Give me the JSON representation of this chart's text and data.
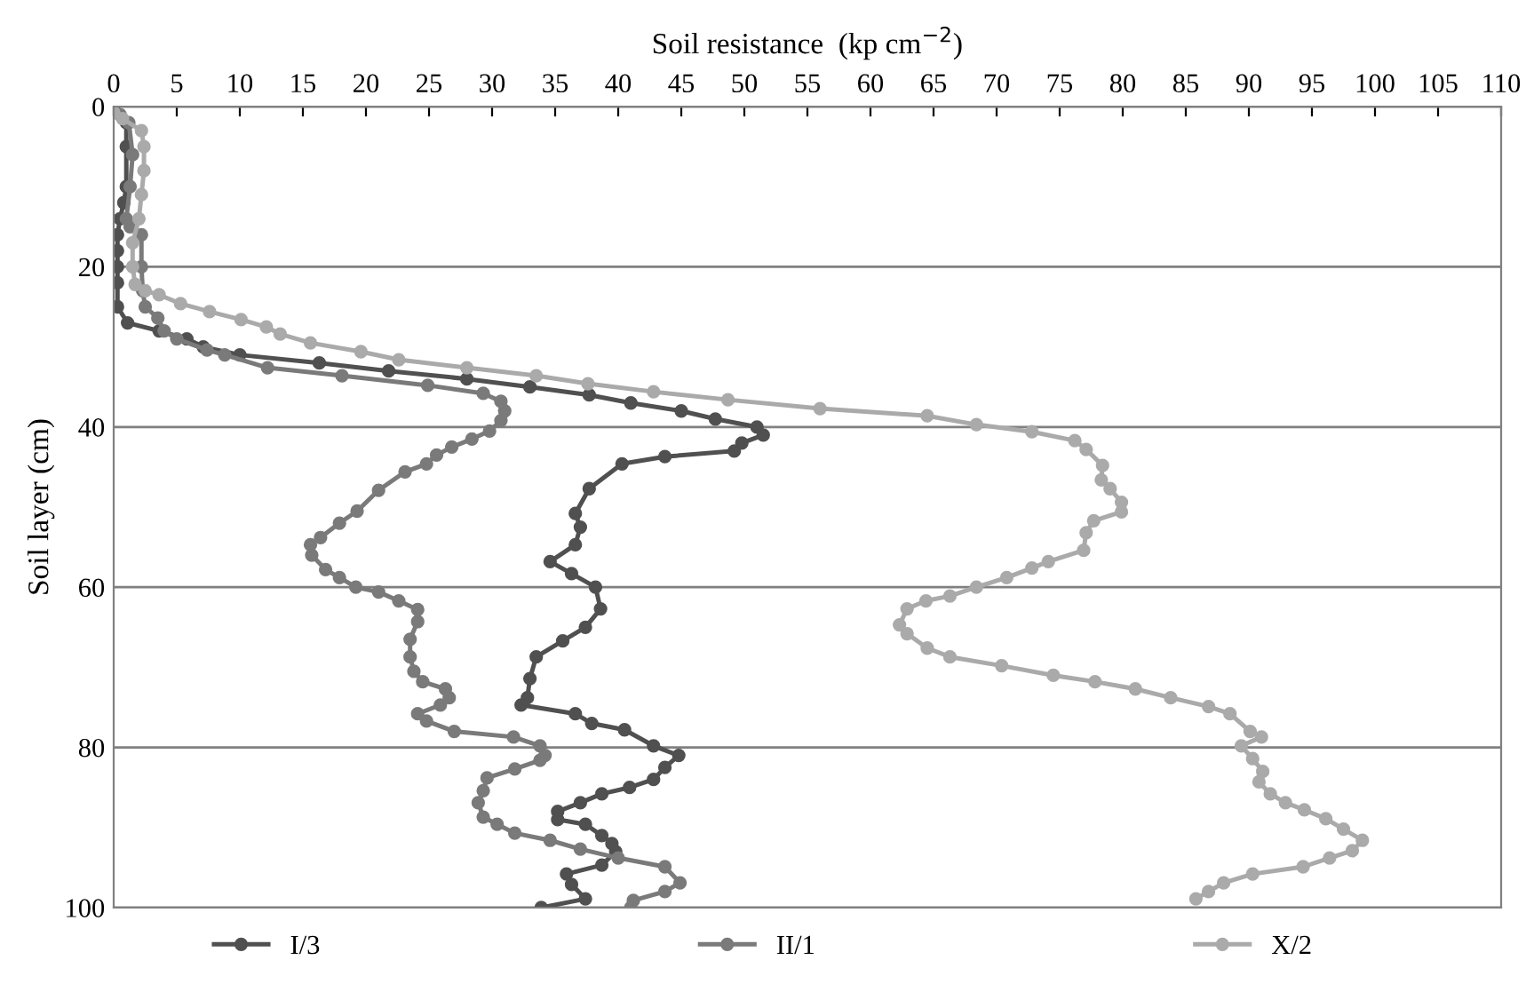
{
  "chart_data": {
    "type": "line",
    "xlabel": "Soil resistance  (kp cm$^{−2}$)",
    "ylabel": "Soil layer (cm)",
    "xlim": [
      0,
      110
    ],
    "xticks": [
      0,
      5,
      10,
      15,
      20,
      25,
      30,
      35,
      40,
      45,
      50,
      55,
      60,
      65,
      70,
      75,
      80,
      85,
      90,
      95,
      100,
      105,
      110
    ],
    "ylim": [
      100,
      0
    ],
    "yticks": [
      0,
      20,
      40,
      60,
      80,
      100
    ],
    "grid": "y",
    "legend": "bottom",
    "marker": "circle",
    "line_style": "solid",
    "series": [
      {
        "name": "I/3",
        "color": "#505050",
        "x": [
          0,
          1,
          1,
          1,
          0.8,
          0.5,
          0.3,
          0.3,
          0.3,
          0.3,
          0.3,
          1.1,
          3.6,
          5.8,
          7.1,
          10,
          16.3,
          21.8,
          28,
          33,
          37.7,
          41,
          45,
          47.7,
          51,
          51.5,
          49.8,
          49.2,
          43.7,
          40.3,
          37.7,
          36.6,
          37,
          36.6,
          34.6,
          36.3,
          38.2,
          38.6,
          37.4,
          35.6,
          33.5,
          33,
          32.8,
          32.3,
          36.6,
          37.9,
          40.5,
          42.8,
          44.8,
          43.7,
          42.8,
          40.9,
          38.7,
          37,
          35.2,
          35.2,
          37.4,
          38.7,
          39.5,
          39.8,
          38.7,
          35.9,
          36.3,
          37.4,
          33.9
        ],
        "values": [
          0,
          2,
          5,
          10,
          12,
          14,
          16,
          18,
          20,
          22,
          25,
          27,
          28,
          29,
          30,
          31,
          32,
          33,
          34,
          35,
          36,
          37,
          38,
          39,
          40,
          41,
          42,
          43,
          43.7,
          44.6,
          47.7,
          50.8,
          52.5,
          54.7,
          56.8,
          58.3,
          60,
          62.7,
          65,
          66.7,
          68.7,
          71.4,
          73.8,
          74.7,
          75.8,
          77,
          77.8,
          79.8,
          81,
          82.5,
          84,
          85,
          85.8,
          86.9,
          88,
          89,
          89.6,
          91,
          92,
          93,
          94.7,
          95.8,
          97.1,
          98.9,
          100
        ]
      },
      {
        "name": "II/1",
        "color": "#7a7a7a",
        "x": [
          0.5,
          1.2,
          1.5,
          1.3,
          1.0,
          1.3,
          2.2,
          2.2,
          2.3,
          2.5,
          3.5,
          4,
          5,
          7.4,
          8.8,
          12.2,
          18.1,
          24.9,
          29.3,
          30.7,
          31,
          30.7,
          29.8,
          28.4,
          26.8,
          25.6,
          24.8,
          23.1,
          21,
          19.3,
          17.9,
          16.4,
          15.6,
          15.7,
          16.8,
          17.9,
          19.2,
          21,
          22.6,
          24.1,
          24.1,
          23.5,
          23.5,
          23.8,
          24.5,
          26.3,
          26.6,
          25.9,
          24.1,
          24.8,
          27,
          31.7,
          33.8,
          34.2,
          33.8,
          31.8,
          29.6,
          29.3,
          28.9,
          29.3,
          30.4,
          31.8,
          34.6,
          37,
          40,
          43.7,
          44.9,
          43.7,
          41.2,
          41
        ],
        "values": [
          1,
          2,
          6,
          10,
          14,
          15,
          16,
          20,
          23,
          25,
          26.4,
          28,
          29,
          30.4,
          31,
          32.6,
          33.6,
          34.8,
          35.8,
          36.8,
          38,
          39.2,
          40.5,
          41.5,
          42.5,
          43.5,
          44.6,
          45.6,
          47.9,
          50.5,
          52,
          53.8,
          54.7,
          56,
          57.8,
          58.8,
          60,
          60.6,
          61.7,
          62.8,
          64.3,
          66.5,
          68.7,
          70.5,
          71.8,
          72.7,
          73.8,
          74.7,
          75.8,
          76.7,
          78,
          78.7,
          79.8,
          81,
          81.6,
          82.7,
          83.8,
          85.4,
          86.9,
          88.7,
          89.6,
          90.7,
          91.6,
          92.7,
          93.8,
          94.9,
          96.9,
          98,
          99.1,
          100
        ]
      },
      {
        "name": "X/2",
        "color": "#aaaaaa",
        "x": [
          0,
          0.7,
          2.2,
          2.4,
          2.4,
          2.2,
          2.0,
          1.5,
          1.5,
          1.7,
          2.5,
          3.6,
          5.3,
          7.6,
          10.1,
          12.1,
          13.2,
          15.6,
          19.6,
          22.6,
          28,
          33.5,
          37.6,
          42.8,
          48.7,
          56,
          64.5,
          68.4,
          72.8,
          76.2,
          77.1,
          78.4,
          78.3,
          79,
          79.9,
          79.9,
          77.7,
          77.1,
          76.9,
          74.1,
          72.8,
          70.8,
          68.4,
          66.3,
          64.4,
          62.9,
          62.3,
          62.9,
          64.5,
          66.3,
          70.4,
          74.5,
          77.8,
          81,
          83.8,
          86.8,
          88.5,
          90.1,
          91,
          89.4,
          90.3,
          91.1,
          90.8,
          91.7,
          92.9,
          94.4,
          96.1,
          97.5,
          99,
          98.2,
          96.4,
          94.3,
          90.3,
          88,
          86.8,
          85.8
        ],
        "values": [
          0.7,
          1.5,
          3,
          5,
          8,
          11,
          14,
          17,
          20,
          22.2,
          23,
          23.5,
          24.6,
          25.6,
          26.6,
          27.5,
          28.4,
          29.5,
          30.6,
          31.6,
          32.6,
          33.6,
          34.6,
          35.6,
          36.6,
          37.7,
          38.6,
          39.7,
          40.6,
          41.7,
          42.8,
          44.8,
          46.6,
          47.7,
          49.4,
          50.6,
          51.7,
          53.2,
          55.4,
          56.8,
          57.6,
          58.8,
          60,
          61.1,
          61.7,
          62.7,
          64.7,
          65.8,
          67.6,
          68.7,
          69.8,
          71,
          71.8,
          72.7,
          73.8,
          74.9,
          75.8,
          78,
          78.7,
          79.8,
          81.4,
          83,
          84.3,
          85.8,
          86.9,
          87.8,
          88.9,
          90.2,
          91.6,
          92.9,
          93.8,
          94.9,
          95.8,
          96.9,
          98,
          98.9
        ]
      }
    ]
  }
}
